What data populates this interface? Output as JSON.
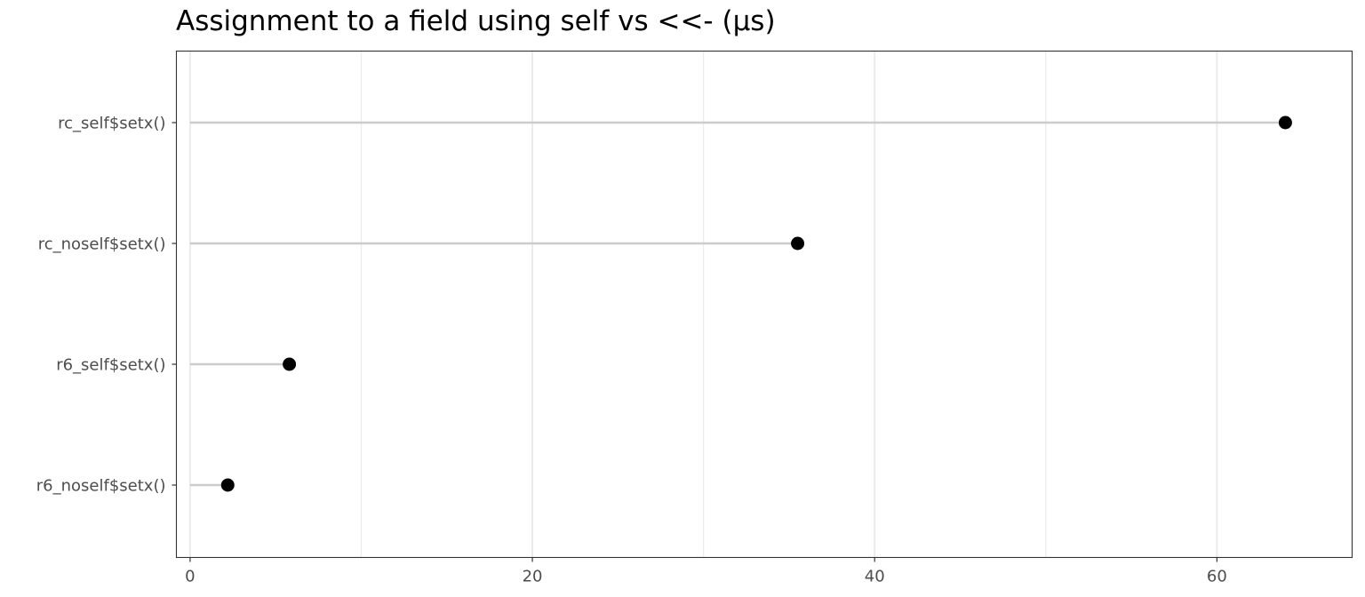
{
  "chart_data": {
    "type": "scatter",
    "title": "Assignment to a field using self vs <<- (µs)",
    "xlabel": "",
    "ylabel": "",
    "categories": [
      "rc_self$setx()",
      "rc_noself$setx()",
      "r6_self$setx()",
      "r6_noself$setx()"
    ],
    "values": [
      64.0,
      35.5,
      5.8,
      2.2
    ],
    "xlim": [
      -0.8,
      67.9
    ],
    "x_ticks": [
      0,
      20,
      40,
      60
    ],
    "x_minor_ticks": [
      10,
      30,
      50
    ],
    "grid": true,
    "style": "lollipop",
    "colors": {
      "point": "#000000",
      "stem": "#cccccc",
      "grid": "#ebebeb",
      "border": "#333333"
    }
  }
}
